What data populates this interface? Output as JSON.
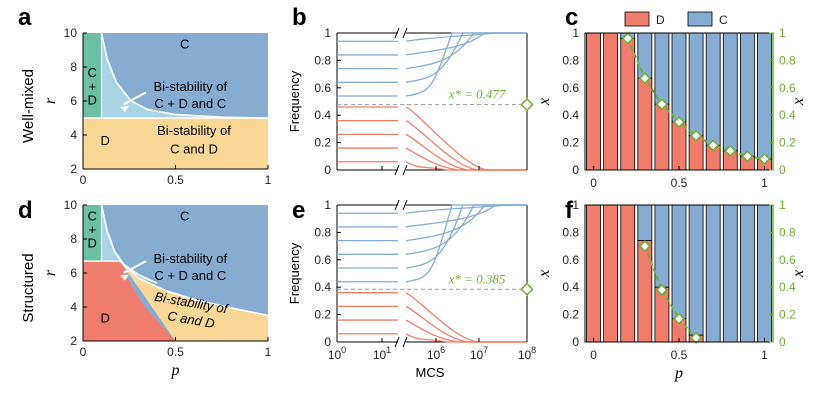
{
  "colors": {
    "D": "#f07d6b",
    "C": "#86acd2",
    "CD": "#6dbfa4",
    "bi_CD_C": "#a8d4e4",
    "bi_C_D": "#f8d797",
    "white": "#ffffff",
    "green": "#6fae34",
    "red_line": "#f07d6b",
    "blue_line": "#86acd2"
  },
  "panels": {
    "a": "a",
    "b": "b",
    "c": "c",
    "d": "d",
    "e": "e",
    "f": "f"
  },
  "rows": {
    "top": "Well-mixed",
    "bottom": "Structured"
  },
  "legend": {
    "D": "D",
    "C": "C"
  },
  "chart_data": [
    {
      "id": "a",
      "type": "area",
      "title": "",
      "xlabel": "p",
      "ylabel": "r",
      "xlim": [
        0,
        1
      ],
      "ylim": [
        2,
        10
      ],
      "x_ticks": [
        "0",
        "0.5",
        "1"
      ],
      "y_ticks": [
        "2",
        "4",
        "6",
        "8",
        "10"
      ],
      "regions": [
        {
          "name": "D",
          "label": "D"
        },
        {
          "name": "C+D",
          "label": "C + D"
        },
        {
          "name": "C",
          "label": "C"
        },
        {
          "name": "bi-stability C+D and C",
          "label_1": "Bi-stability of",
          "label_2": "C + D and C"
        },
        {
          "name": "bi-stability C and D",
          "label_1": "Bi-stability of",
          "label_2": "C and D"
        }
      ],
      "boundaries": {
        "horizontal_r": 5,
        "CD_right_edge_p": 0.1,
        "white_curve": [
          [
            0.1,
            10
          ],
          [
            0.13,
            8.5
          ],
          [
            0.18,
            7.1
          ],
          [
            0.26,
            6.0
          ],
          [
            0.35,
            5.5
          ],
          [
            0.5,
            5.2
          ],
          [
            0.75,
            5.05
          ],
          [
            1.0,
            5.0
          ]
        ]
      }
    },
    {
      "id": "b",
      "type": "line",
      "xlabel": "",
      "ylabel": "Frequency",
      "ylim": [
        0,
        1
      ],
      "y_ticks": [
        "0",
        "0.2",
        "0.4",
        "0.6",
        "0.8",
        "1"
      ],
      "x_ticks_left": [
        "10^0",
        "10^1"
      ],
      "x_ticks_right": [
        "10^6",
        "10^7",
        "10^8"
      ],
      "x_star": 0.477,
      "x_star_label": "x* = 0.477",
      "initial_C": [
        0.54,
        0.64,
        0.74,
        0.84,
        0.94
      ],
      "initial_D": [
        0.06,
        0.16,
        0.26,
        0.36,
        0.46
      ]
    },
    {
      "id": "c",
      "type": "bar",
      "xlabel": "p",
      "ylabel": "x0",
      "ylabel_right": "x*",
      "categories": [
        0,
        0.1,
        0.2,
        0.3,
        0.4,
        0.5,
        0.6,
        0.7,
        0.8,
        0.9,
        1.0
      ],
      "x_ticks": [
        "0",
        "0.5",
        "1"
      ],
      "series": [
        {
          "name": "D",
          "values": [
            1,
            1,
            0.96,
            0.67,
            0.48,
            0.35,
            0.25,
            0.18,
            0.14,
            0.1,
            0.08
          ]
        },
        {
          "name": "C",
          "values": [
            0,
            0,
            0.04,
            0.33,
            0.52,
            0.65,
            0.75,
            0.82,
            0.86,
            0.9,
            0.92
          ]
        }
      ],
      "x_star_p": [
        0.2,
        0.3,
        0.4,
        0.5,
        0.6,
        0.7,
        0.8,
        0.9,
        1.0
      ],
      "x_star_values": [
        0.96,
        0.67,
        0.48,
        0.35,
        0.25,
        0.18,
        0.14,
        0.1,
        0.08
      ],
      "ylim": [
        0,
        1
      ],
      "y_ticks": [
        "0",
        "0.2",
        "0.4",
        "0.6",
        "0.8",
        "1"
      ]
    },
    {
      "id": "d",
      "type": "area",
      "xlabel": "p",
      "ylabel": "r",
      "xlim": [
        0,
        1
      ],
      "ylim": [
        2,
        10
      ],
      "x_ticks": [
        "0",
        "0.5",
        "1"
      ],
      "y_ticks": [
        "2",
        "4",
        "6",
        "8",
        "10"
      ],
      "regions": [
        {
          "name": "D",
          "label": "D"
        },
        {
          "name": "C+D",
          "label": "C + D"
        },
        {
          "name": "C",
          "label": "C"
        },
        {
          "name": "bi-stability C+D and C",
          "label_1": "Bi-stability of",
          "label_2": "C + D and C"
        },
        {
          "name": "bi-stability C and D",
          "label_1": "Bi-stability of",
          "label_2": "C and D"
        }
      ],
      "boundaries": {
        "green_red_r": 6.7,
        "CD_right_edge_p": 0.1,
        "white_curve": [
          [
            0.1,
            10
          ],
          [
            0.13,
            8.5
          ],
          [
            0.17,
            7.3
          ],
          [
            0.22,
            6.5
          ],
          [
            0.3,
            5.9
          ],
          [
            0.4,
            5.4
          ]
        ],
        "yellow_upper": [
          [
            0.2,
            6.7
          ],
          [
            0.3,
            5.7
          ],
          [
            0.45,
            4.95
          ],
          [
            0.6,
            4.45
          ],
          [
            0.8,
            3.95
          ],
          [
            1.0,
            3.5
          ]
        ],
        "yellow_lower": [
          [
            0.2,
            6.7
          ],
          [
            0.25,
            5.5
          ],
          [
            0.32,
            4.2
          ],
          [
            0.4,
            3.2
          ],
          [
            0.45,
            2.6
          ],
          [
            0.5,
            2.0
          ]
        ]
      }
    },
    {
      "id": "e",
      "type": "line",
      "xlabel": "MCS",
      "ylabel": "Frequency",
      "ylim": [
        0,
        1
      ],
      "y_ticks": [
        "0",
        "0.2",
        "0.4",
        "0.6",
        "0.8",
        "1"
      ],
      "x_ticks_left": [
        "10^0",
        "10^1"
      ],
      "x_ticks_right": [
        "10^6",
        "10^7",
        "10^8"
      ],
      "x_star": 0.385,
      "x_star_label": "x* = 0.385",
      "initial_C": [
        0.44,
        0.54,
        0.64,
        0.74,
        0.84,
        0.94
      ],
      "initial_D": [
        0.06,
        0.16,
        0.26,
        0.36
      ]
    },
    {
      "id": "f",
      "type": "bar",
      "xlabel": "p",
      "ylabel": "x0",
      "ylabel_right": "x*",
      "categories": [
        0,
        0.1,
        0.2,
        0.3,
        0.4,
        0.5,
        0.6,
        0.7,
        0.8,
        0.9,
        1.0
      ],
      "x_ticks": [
        "0",
        "0.5",
        "1"
      ],
      "series": [
        {
          "name": "D",
          "values": [
            1,
            1,
            1,
            0.74,
            0.4,
            0.17,
            0.05,
            0,
            0,
            0,
            0
          ]
        },
        {
          "name": "C",
          "values": [
            0,
            0,
            0,
            0.26,
            0.6,
            0.83,
            0.95,
            1,
            1,
            1,
            1
          ]
        }
      ],
      "x_star_p": [
        0.3,
        0.4,
        0.5,
        0.6
      ],
      "x_star_values": [
        0.7,
        0.38,
        0.17,
        0.03
      ],
      "ylim": [
        0,
        1
      ],
      "y_ticks": [
        "0",
        "0.2",
        "0.4",
        "0.6",
        "0.8",
        "1"
      ]
    }
  ]
}
